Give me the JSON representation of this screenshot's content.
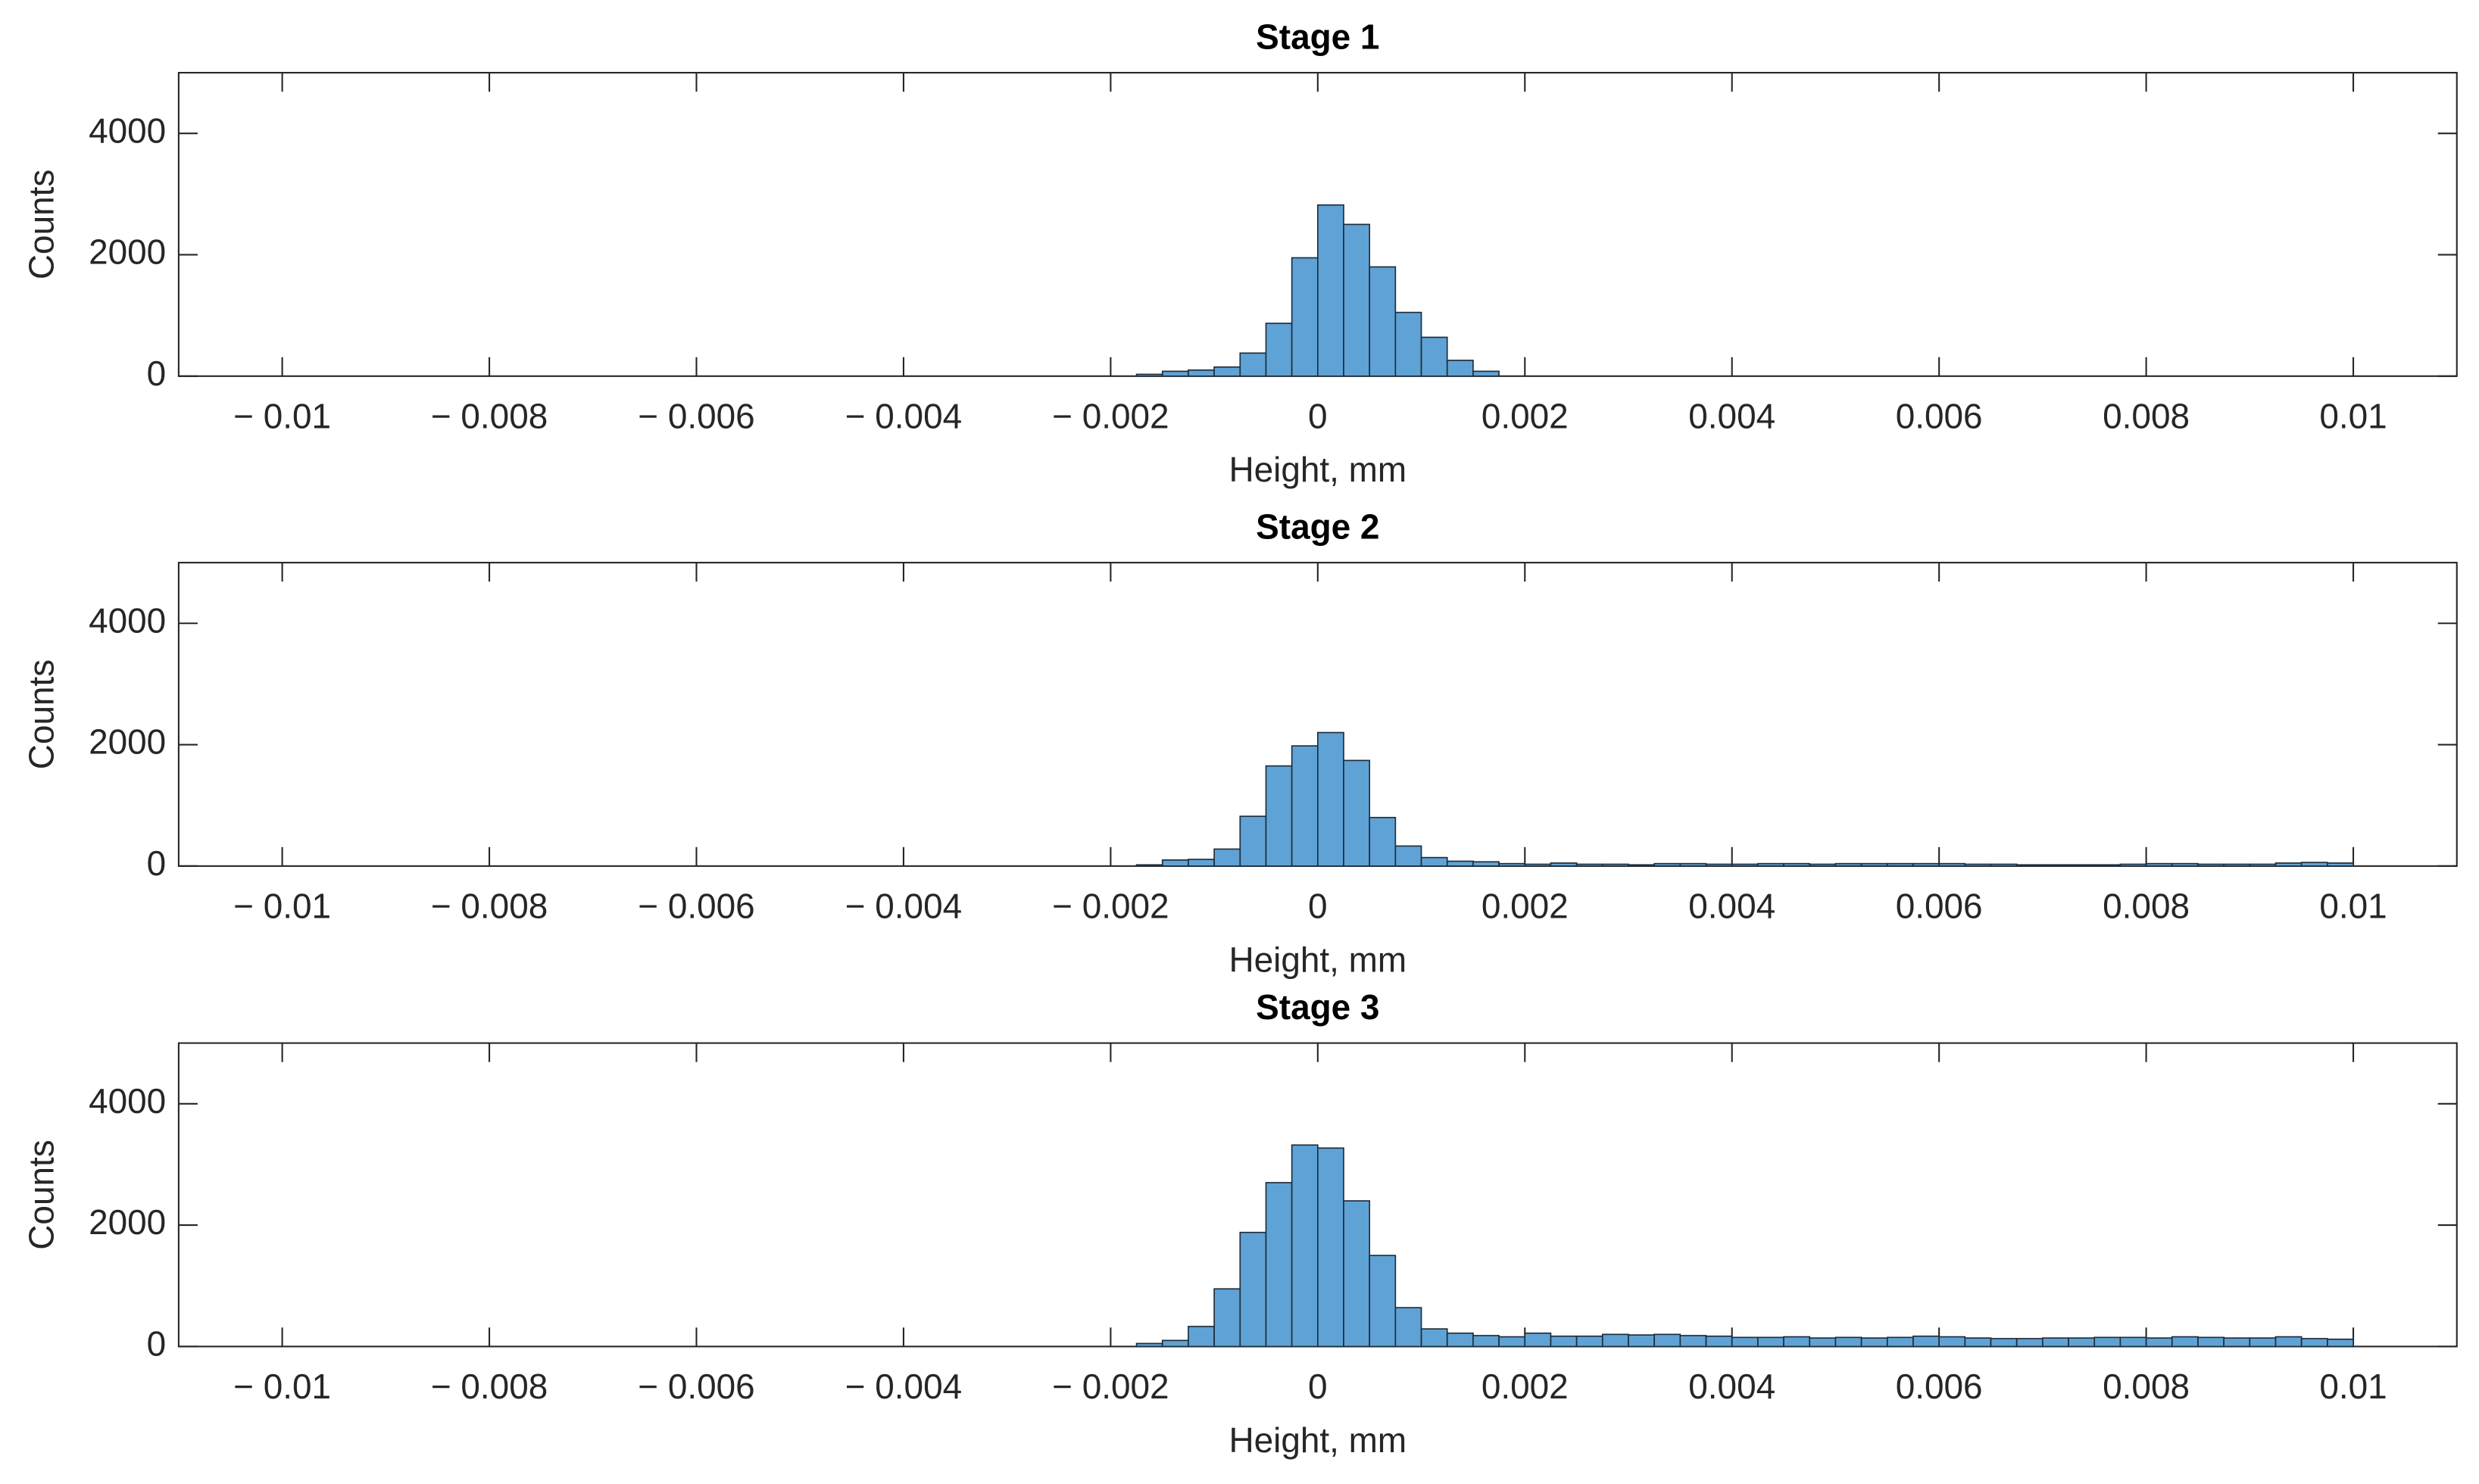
{
  "chart_data": [
    {
      "type": "histogram",
      "title": "Stage 1",
      "xlabel": "Height, mm",
      "ylabel": "Counts",
      "color": "#5fa3d6",
      "bins": [
        -0.00175,
        -0.0015,
        -0.00125,
        -0.001,
        -0.00075,
        -0.0005,
        -0.00025,
        0,
        0.00025,
        0.0005,
        0.00075,
        0.001,
        0.00125,
        0.0015,
        0.00175,
        0.002,
        0.00225,
        0.0025,
        0.00275,
        0.003,
        0.00325,
        0.0035,
        0.00375,
        0.004,
        0.00425,
        0.0045,
        0.00475,
        0.005,
        0.00525,
        0.0055,
        0.00575,
        0.006,
        0.00625,
        0.0065,
        0.00675,
        0.007,
        0.00725,
        0.0075,
        0.00775,
        0.008,
        0.00825,
        0.0085,
        0.00875,
        0.009,
        0.00925,
        0.0095,
        0.00975,
        0.01
      ],
      "counts": [
        30,
        80,
        100,
        150,
        380,
        870,
        1950,
        2820,
        2500,
        1800,
        1050,
        640,
        260,
        80,
        0,
        0,
        0,
        0,
        0,
        0,
        0,
        0,
        0,
        0,
        0,
        0,
        0,
        0,
        0,
        0,
        0,
        0,
        0,
        0,
        0,
        0,
        0,
        0,
        0,
        0,
        0,
        0,
        0,
        0,
        0,
        0,
        0
      ],
      "xlim": [
        -0.011,
        0.011
      ],
      "ylim": [
        0,
        5000
      ],
      "xticks": [
        {
          "value": -0.01,
          "label": "− 0.01"
        },
        {
          "value": -0.008,
          "label": "− 0.008"
        },
        {
          "value": -0.006,
          "label": "− 0.006"
        },
        {
          "value": -0.004,
          "label": "− 0.004"
        },
        {
          "value": -0.002,
          "label": "− 0.002"
        },
        0,
        0.002,
        0.004,
        0.006,
        0.008,
        0.01
      ],
      "yticks": [
        0,
        2000,
        4000
      ]
    },
    {
      "type": "histogram",
      "title": "Stage 2",
      "xlabel": "Height, mm",
      "ylabel": "Counts",
      "color": "#5fa3d6",
      "bins": [
        -0.00175,
        -0.0015,
        -0.00125,
        -0.001,
        -0.00075,
        -0.0005,
        -0.00025,
        0,
        0.00025,
        0.0005,
        0.00075,
        0.001,
        0.00125,
        0.0015,
        0.00175,
        0.002,
        0.00225,
        0.0025,
        0.00275,
        0.003,
        0.00325,
        0.0035,
        0.00375,
        0.004,
        0.00425,
        0.0045,
        0.00475,
        0.005,
        0.00525,
        0.0055,
        0.00575,
        0.006,
        0.00625,
        0.0065,
        0.00675,
        0.007,
        0.00725,
        0.0075,
        0.00775,
        0.008,
        0.00825,
        0.0085,
        0.00875,
        0.009,
        0.00925,
        0.0095,
        0.00975,
        0.01
      ],
      "counts": [
        20,
        100,
        110,
        280,
        820,
        1650,
        1980,
        2200,
        1740,
        800,
        330,
        140,
        80,
        70,
        40,
        30,
        50,
        30,
        30,
        20,
        40,
        40,
        30,
        30,
        40,
        40,
        30,
        40,
        40,
        40,
        40,
        40,
        30,
        30,
        20,
        20,
        20,
        20,
        30,
        40,
        40,
        30,
        30,
        30,
        50,
        60,
        50
      ],
      "xlim": [
        -0.011,
        0.011
      ],
      "ylim": [
        0,
        5000
      ],
      "xticks": [
        {
          "value": -0.01,
          "label": "− 0.01"
        },
        {
          "value": -0.008,
          "label": "− 0.008"
        },
        {
          "value": -0.006,
          "label": "− 0.006"
        },
        {
          "value": -0.004,
          "label": "− 0.004"
        },
        {
          "value": -0.002,
          "label": "− 0.002"
        },
        0,
        0.002,
        0.004,
        0.006,
        0.008,
        0.01
      ],
      "yticks": [
        0,
        2000,
        4000
      ]
    },
    {
      "type": "histogram",
      "title": "Stage 3",
      "xlabel": "Height, mm",
      "ylabel": "Counts",
      "color": "#5fa3d6",
      "bins": [
        -0.00175,
        -0.0015,
        -0.00125,
        -0.001,
        -0.00075,
        -0.0005,
        -0.00025,
        0,
        0.00025,
        0.0005,
        0.00075,
        0.001,
        0.00125,
        0.0015,
        0.00175,
        0.002,
        0.00225,
        0.0025,
        0.00275,
        0.003,
        0.00325,
        0.0035,
        0.00375,
        0.004,
        0.00425,
        0.0045,
        0.00475,
        0.005,
        0.00525,
        0.0055,
        0.00575,
        0.006,
        0.00625,
        0.0065,
        0.00675,
        0.007,
        0.00725,
        0.0075,
        0.00775,
        0.008,
        0.00825,
        0.0085,
        0.00875,
        0.009,
        0.00925,
        0.0095,
        0.00975,
        0.01
      ],
      "counts": [
        50,
        100,
        330,
        950,
        1880,
        2700,
        3320,
        3270,
        2400,
        1500,
        640,
        290,
        220,
        180,
        160,
        220,
        170,
        170,
        200,
        190,
        200,
        180,
        170,
        150,
        150,
        160,
        140,
        150,
        140,
        150,
        170,
        160,
        140,
        130,
        130,
        140,
        140,
        150,
        150,
        140,
        160,
        150,
        140,
        140,
        160,
        130,
        120
      ],
      "xlim": [
        -0.011,
        0.011
      ],
      "ylim": [
        0,
        5000
      ],
      "xticks": [
        {
          "value": -0.01,
          "label": "− 0.01"
        },
        {
          "value": -0.008,
          "label": "− 0.008"
        },
        {
          "value": -0.006,
          "label": "− 0.006"
        },
        {
          "value": -0.004,
          "label": "− 0.004"
        },
        {
          "value": -0.002,
          "label": "− 0.002"
        },
        0,
        0.002,
        0.004,
        0.006,
        0.008,
        0.01
      ],
      "yticks": [
        0,
        2000,
        4000
      ]
    }
  ]
}
